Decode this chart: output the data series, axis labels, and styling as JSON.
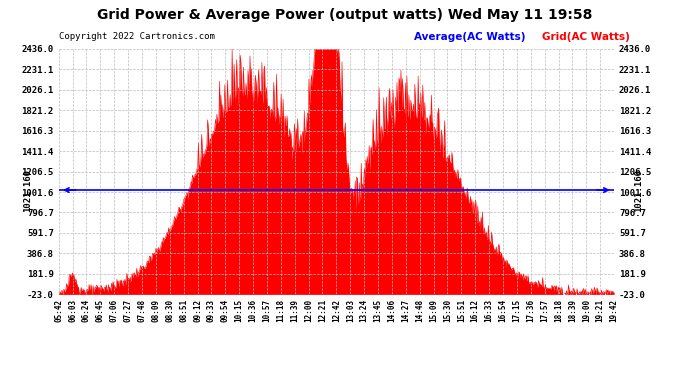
{
  "title": "Grid Power & Average Power (output watts) Wed May 11 19:58",
  "copyright": "Copyright 2022 Cartronics.com",
  "legend_avg": "Average(AC Watts)",
  "legend_grid": "Grid(AC Watts)",
  "avg_value": 1021.16,
  "avg_label": "1021.160",
  "y_min": -23.0,
  "y_max": 2436.0,
  "yticks": [
    2436.0,
    2231.1,
    2026.1,
    1821.2,
    1616.3,
    1411.4,
    1206.5,
    1001.6,
    796.7,
    591.7,
    386.8,
    181.9,
    -23.0
  ],
  "bg_color": "#ffffff",
  "fill_color": "#ff0000",
  "line_color": "#ff0000",
  "avg_line_color": "#0000ff",
  "title_color": "#000000",
  "xtick_labels": [
    "05:42",
    "06:03",
    "06:24",
    "06:45",
    "07:06",
    "07:27",
    "07:48",
    "08:09",
    "08:30",
    "08:51",
    "09:12",
    "09:33",
    "09:54",
    "10:15",
    "10:36",
    "10:57",
    "11:18",
    "11:39",
    "12:00",
    "12:21",
    "12:42",
    "13:03",
    "13:24",
    "13:45",
    "14:06",
    "14:27",
    "14:48",
    "15:09",
    "15:30",
    "15:51",
    "16:12",
    "16:33",
    "16:54",
    "17:15",
    "17:36",
    "17:57",
    "18:18",
    "18:39",
    "19:00",
    "19:21",
    "19:42"
  ]
}
